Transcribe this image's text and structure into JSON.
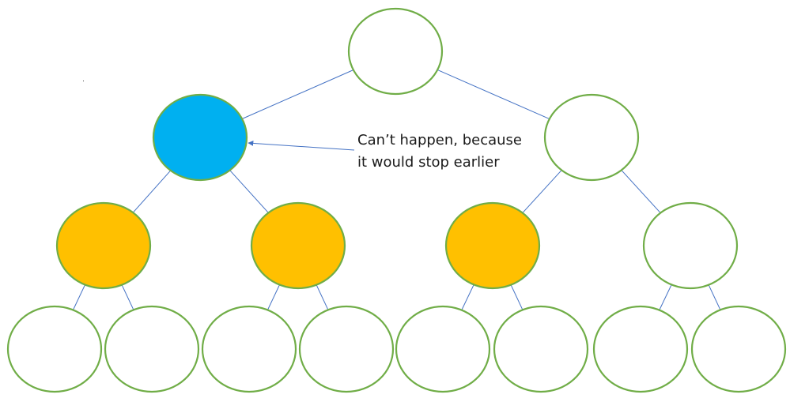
{
  "diagram": {
    "annotation": {
      "line1": "Can’t happen, because",
      "line2": "it would stop earlier"
    },
    "colors": {
      "node_stroke": "#70ad47",
      "edge": "#4472c4",
      "fill_white": "#ffffff",
      "fill_blue": "#00b0f0",
      "fill_orange": "#ffc000"
    },
    "nodes": [
      {
        "id": "root",
        "level": 0,
        "fill": "white"
      },
      {
        "id": "l1-left",
        "level": 1,
        "fill": "blue"
      },
      {
        "id": "l1-right",
        "level": 1,
        "fill": "white"
      },
      {
        "id": "l2-1",
        "level": 2,
        "fill": "orange"
      },
      {
        "id": "l2-2",
        "level": 2,
        "fill": "orange"
      },
      {
        "id": "l2-3",
        "level": 2,
        "fill": "orange"
      },
      {
        "id": "l2-4",
        "level": 2,
        "fill": "white"
      },
      {
        "id": "l3-1",
        "level": 3,
        "fill": "white"
      },
      {
        "id": "l3-2",
        "level": 3,
        "fill": "white"
      },
      {
        "id": "l3-3",
        "level": 3,
        "fill": "white"
      },
      {
        "id": "l3-4",
        "level": 3,
        "fill": "white"
      },
      {
        "id": "l3-5",
        "level": 3,
        "fill": "white"
      },
      {
        "id": "l3-6",
        "level": 3,
        "fill": "white"
      },
      {
        "id": "l3-7",
        "level": 3,
        "fill": "white"
      },
      {
        "id": "l3-8",
        "level": 3,
        "fill": "white"
      }
    ],
    "edges": [
      [
        "root",
        "l1-left"
      ],
      [
        "root",
        "l1-right"
      ],
      [
        "l1-left",
        "l2-1"
      ],
      [
        "l1-left",
        "l2-2"
      ],
      [
        "l1-right",
        "l2-3"
      ],
      [
        "l1-right",
        "l2-4"
      ],
      [
        "l2-1",
        "l3-1"
      ],
      [
        "l2-1",
        "l3-2"
      ],
      [
        "l2-2",
        "l3-3"
      ],
      [
        "l2-2",
        "l3-4"
      ],
      [
        "l2-3",
        "l3-5"
      ],
      [
        "l2-3",
        "l3-6"
      ],
      [
        "l2-4",
        "l3-7"
      ],
      [
        "l2-4",
        "l3-8"
      ]
    ]
  }
}
